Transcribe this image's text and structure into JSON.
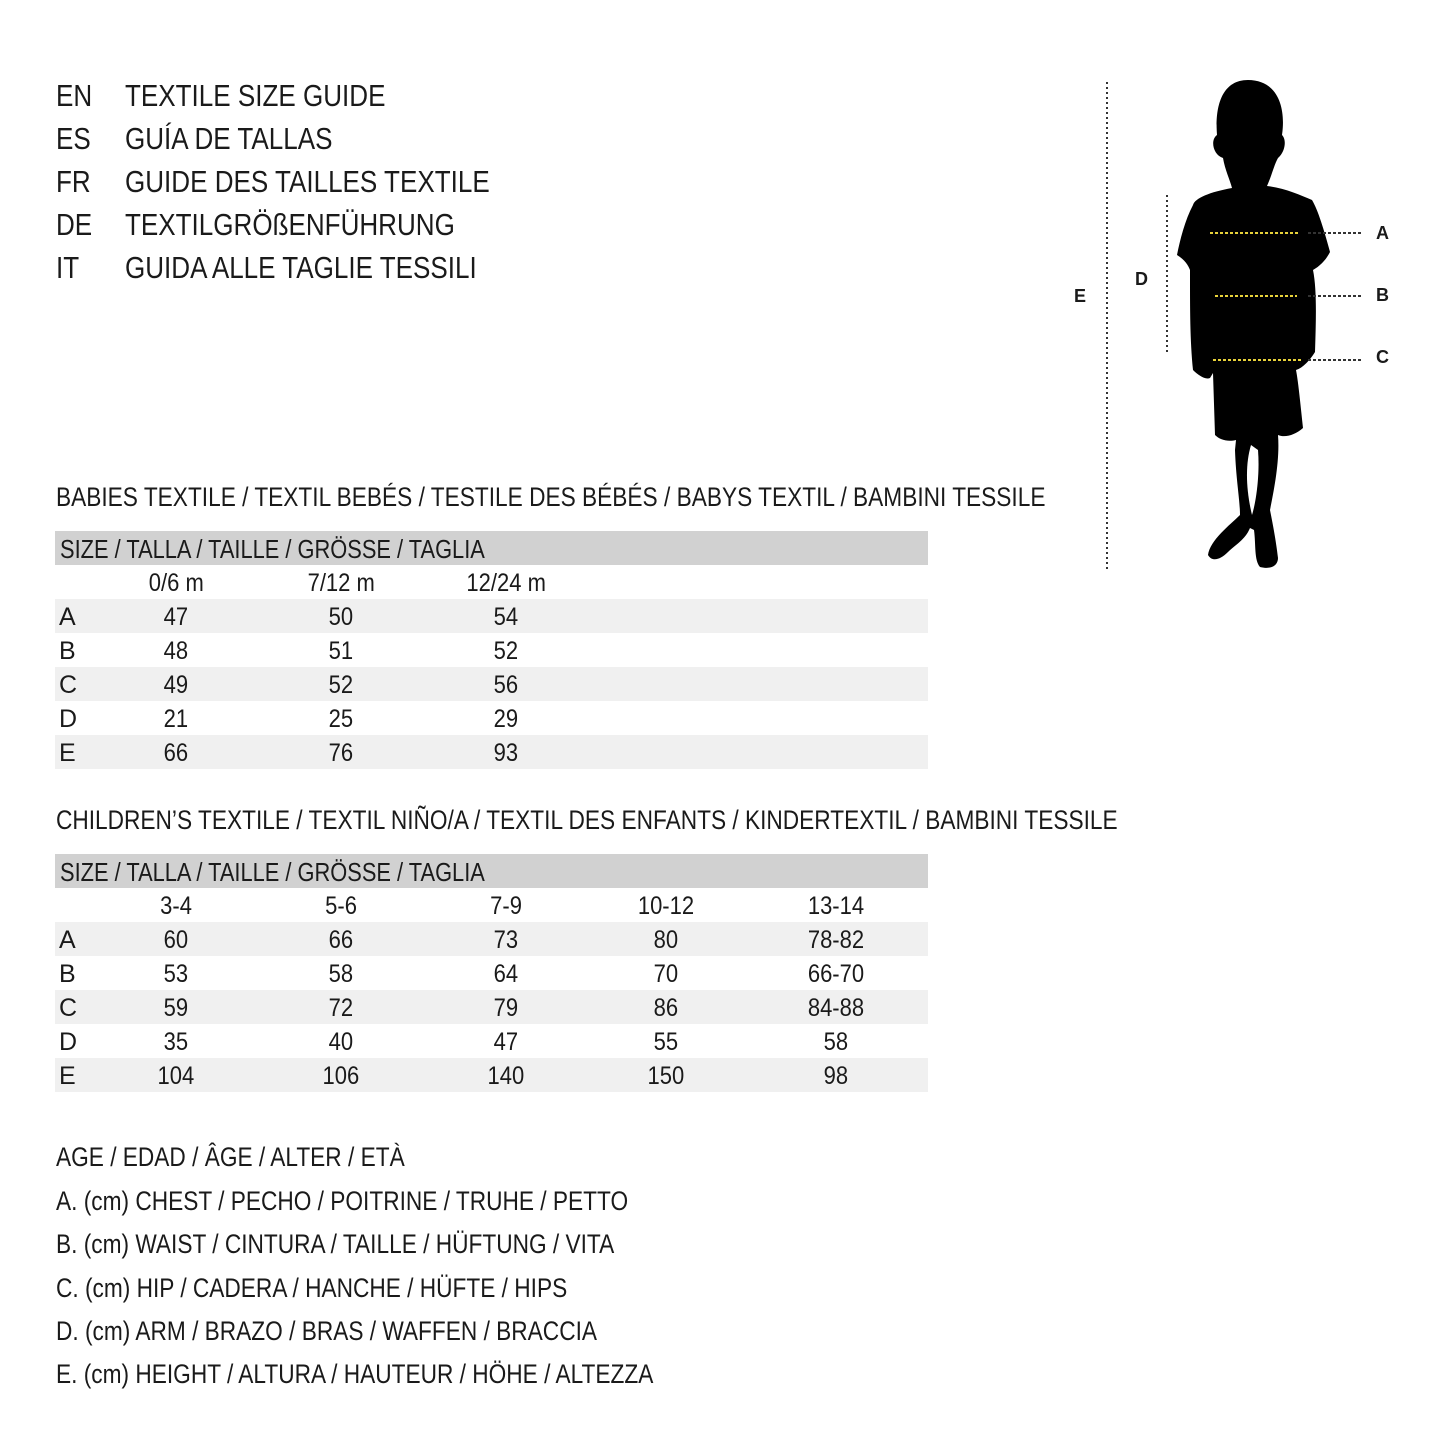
{
  "titles": [
    {
      "code": "EN",
      "text": "TEXTILE SIZE GUIDE"
    },
    {
      "code": "ES",
      "text": "GUÍA DE TALLAS"
    },
    {
      "code": "FR",
      "text": "GUIDE DES TAILLES TEXTILE"
    },
    {
      "code": "DE",
      "text": "TEXTILGRÖßENFÜHRUNG"
    },
    {
      "code": "IT",
      "text": "GUIDA ALLE TAGLIE TESSILI"
    }
  ],
  "figure": {
    "labels": {
      "a": "A",
      "b": "B",
      "c": "C",
      "d": "D",
      "e": "E"
    },
    "accent": "#e8d23a"
  },
  "babies": {
    "heading": "BABIES TEXTILE / TEXTIL BEBÉS / TESTILE DES BÉBÉS / BABYS TEXTIL / BAMBINI TESSILE",
    "size_header": "SIZE / TALLA / TAILLE / GRÖSSE / TAGLIA",
    "columns": [
      "0/6 m",
      "7/12 m",
      "12/24 m"
    ],
    "rows": [
      {
        "label": "A",
        "values": [
          "47",
          "50",
          "54"
        ]
      },
      {
        "label": "B",
        "values": [
          "48",
          "51",
          "52"
        ]
      },
      {
        "label": "C",
        "values": [
          "49",
          "52",
          "56"
        ]
      },
      {
        "label": "D",
        "values": [
          "21",
          "25",
          "29"
        ]
      },
      {
        "label": "E",
        "values": [
          "66",
          "76",
          "93"
        ]
      }
    ]
  },
  "children": {
    "heading": "CHILDREN’S TEXTILE / TEXTIL NIÑO/A / TEXTIL DES ENFANTS / KINDERTEXTIL / BAMBINI TESSILE",
    "size_header": "SIZE / TALLA / TAILLE / GRÖSSE / TAGLIA",
    "columns": [
      "3-4",
      "5-6",
      "7-9",
      "10-12",
      "13-14"
    ],
    "rows": [
      {
        "label": "A",
        "values": [
          "60",
          "66",
          "73",
          "80",
          "78-82"
        ]
      },
      {
        "label": "B",
        "values": [
          "53",
          "58",
          "64",
          "70",
          "66-70"
        ]
      },
      {
        "label": "C",
        "values": [
          "59",
          "72",
          "79",
          "86",
          "84-88"
        ]
      },
      {
        "label": "D",
        "values": [
          "35",
          "40",
          "47",
          "55",
          "58"
        ]
      },
      {
        "label": "E",
        "values": [
          "104",
          "106",
          "140",
          "150",
          "98"
        ]
      }
    ]
  },
  "legend": [
    "AGE / EDAD / ÂGE / ALTER / ETÀ",
    "A. (cm) CHEST / PECHO / POITRINE / TRUHE / PETTO",
    "B. (cm) WAIST / CINTURA / TAILLE / HÜFTUNG / VITA",
    "C. (cm) HIP / CADERA / HANCHE / HÜFTE / HIPS",
    "D. (cm) ARM / BRAZO / BRAS / WAFFEN / BRACCIA",
    "E. (cm) HEIGHT / ALTURA / HAUTEUR / HÖHE / ALTEZZA"
  ]
}
